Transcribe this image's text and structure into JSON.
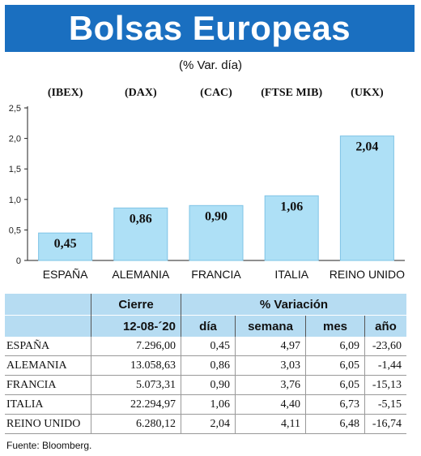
{
  "title": "Bolsas Europeas",
  "subtitle": "(% Var. día)",
  "source": "Fuente: Bloomberg.",
  "colors": {
    "banner": "#1a6fc0",
    "bar": "#aee0f6",
    "bar_stroke": "#7fc4e6",
    "table_header": "#b6dcf2"
  },
  "chart_data": {
    "type": "bar",
    "indices": [
      "(IBEX)",
      "(DAX)",
      "(CAC)",
      "(FTSE MIB)",
      "(UKX)"
    ],
    "categories": [
      "ESPAÑA",
      "ALEMANIA",
      "FRANCIA",
      "ITALIA",
      "REINO UNIDO"
    ],
    "values": [
      0.45,
      0.86,
      0.9,
      1.06,
      2.04
    ],
    "value_labels": [
      "0,45",
      "0,86",
      "0,90",
      "1,06",
      "2,04"
    ],
    "yticks": [
      0,
      0.5,
      1.0,
      1.5,
      2.0,
      2.5
    ],
    "ytick_labels": [
      "0",
      "0,5",
      "1,0",
      "1,5",
      "2,0",
      "2,5"
    ],
    "ylim": [
      0,
      2.5
    ],
    "grid": false,
    "legend": "none"
  },
  "table": {
    "header_top": {
      "cierre": "Cierre",
      "variacion": "% Variación"
    },
    "header_sub": {
      "date": "12-08-´20",
      "dia": "día",
      "semana": "semana",
      "mes": "mes",
      "anio": "año"
    },
    "rows": [
      {
        "name": "ESPAÑA",
        "cierre": "7.296,00",
        "dia": "0,45",
        "semana": "4,97",
        "mes": "6,09",
        "anio": "-23,60"
      },
      {
        "name": "ALEMANIA",
        "cierre": "13.058,63",
        "dia": "0,86",
        "semana": "3,03",
        "mes": "6,05",
        "anio": "-1,44"
      },
      {
        "name": "FRANCIA",
        "cierre": "5.073,31",
        "dia": "0,90",
        "semana": "3,76",
        "mes": "6,05",
        "anio": "-15,13"
      },
      {
        "name": "ITALIA",
        "cierre": "22.294,97",
        "dia": "1,06",
        "semana": "4,40",
        "mes": "6,73",
        "anio": "-5,15"
      },
      {
        "name": "REINO UNIDO",
        "cierre": "6.280,12",
        "dia": "2,04",
        "semana": "4,11",
        "mes": "6,48",
        "anio": "-16,74"
      }
    ]
  }
}
